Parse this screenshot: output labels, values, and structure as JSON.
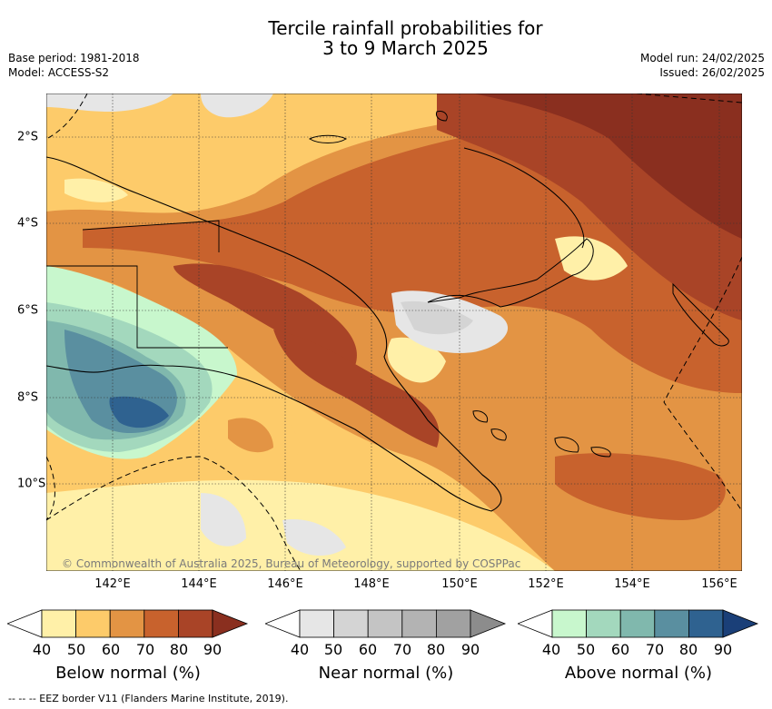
{
  "title_line1": "Tercile rainfall probabilities for",
  "title_line2": "3 to 9 March 2025",
  "meta": {
    "base_period": "Base period: 1981-2018",
    "model": "Model: ACCESS-S2",
    "model_run": "Model run: 24/02/2025",
    "issued": "Issued: 26/02/2025"
  },
  "map": {
    "lon_labels": [
      "142°E",
      "144°E",
      "146°E",
      "148°E",
      "150°E",
      "152°E",
      "154°E",
      "156°E"
    ],
    "lat_labels": [
      "2°S",
      "4°S",
      "6°S",
      "8°S",
      "10°S"
    ],
    "copyright": "© Commonwealth of Australia 2025, Bureau of Meteorology, supported by COSPPac"
  },
  "colorbars": [
    {
      "title": "Below normal (%)",
      "ticks": [
        "40",
        "50",
        "60",
        "70",
        "80",
        "90"
      ],
      "colors": [
        "#fff0a8",
        "#fdcb6a",
        "#e39444",
        "#c8622d",
        "#a94427",
        "#8a2f1f"
      ]
    },
    {
      "title": "Near normal (%)",
      "ticks": [
        "40",
        "50",
        "60",
        "70",
        "80",
        "90"
      ],
      "colors": [
        "#e6e6e6",
        "#d4d4d4",
        "#c4c4c4",
        "#b3b3b3",
        "#a1a1a1",
        "#8c8c8c"
      ]
    },
    {
      "title": "Above normal (%)",
      "ticks": [
        "40",
        "50",
        "60",
        "70",
        "80",
        "90"
      ],
      "colors": [
        "#c8f7cd",
        "#a3d8bd",
        "#80b8ad",
        "#5a8fa0",
        "#2f6290",
        "#1a3f78"
      ]
    }
  ],
  "footnote": "--  --  -- EEZ border V11 (Flanders Marine Institute, 2019)."
}
